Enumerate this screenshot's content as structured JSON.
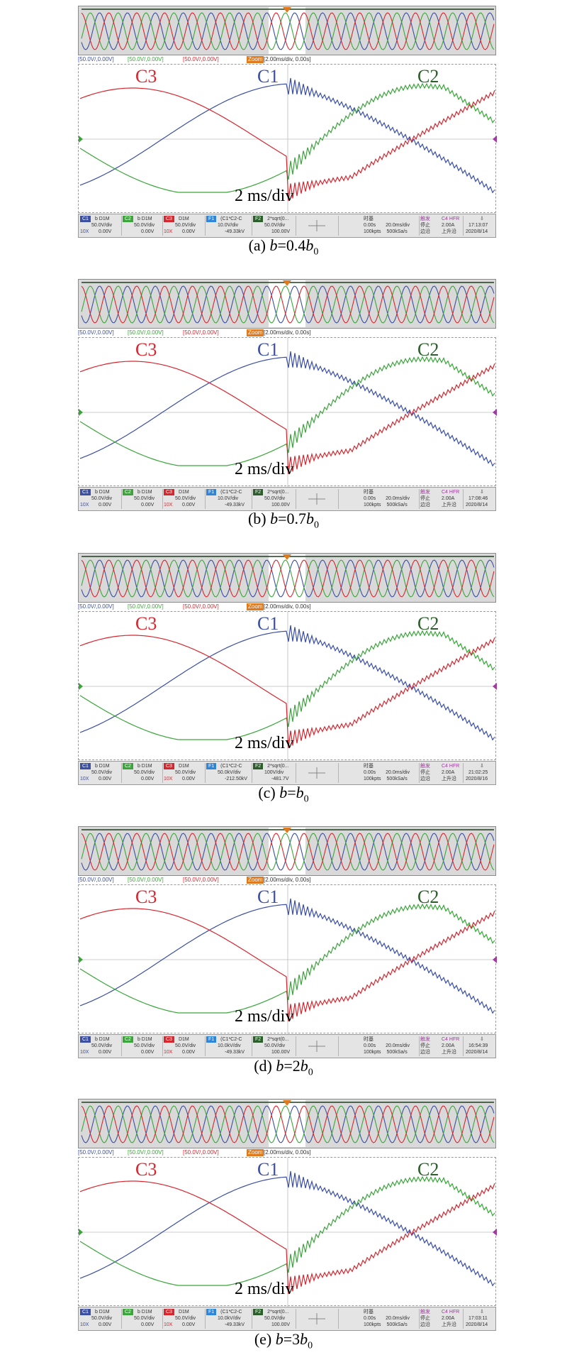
{
  "panels": [
    {
      "header": {
        "c1": "[50.0V/,0.00V]",
        "c2": "[50.0V/,0.00V]",
        "c3": "[50.0V/,0.00V]",
        "zoom": "Zoom",
        "timebase": "[2.00ms/div, 0.00s]"
      },
      "labels": {
        "c3": "C3",
        "c1": "C1",
        "c2": "C2"
      },
      "div_text": "2 ms/div",
      "status": {
        "c1": [
          "C1",
          "b D1M",
          "50.0V/div",
          "0.00V",
          "10X"
        ],
        "c2": [
          "C2",
          "b D1M",
          "50.0V/div",
          "0.00V"
        ],
        "c3": [
          "C3",
          "D1M",
          "50.0V/div",
          "0.00V",
          "10X"
        ],
        "f1": [
          "F1",
          "(C1*C2-C",
          "10.0V/div",
          "-49.33kV"
        ],
        "f2": [
          "F2",
          "2*sqrt(0...",
          "50.0V/div",
          "100.00V"
        ],
        "time": [
          "时基",
          "0.00s",
          "20.0ms/div",
          "100kpts",
          "500kSa/s"
        ],
        "trigger": [
          "触发",
          "停止",
          "边沿",
          "C4 HFR",
          "2.00A",
          "上升沿"
        ],
        "clock": [
          "17:13:07",
          "2020/8/14"
        ]
      },
      "caption": {
        "prefix": "(a) ",
        "var": "b",
        "mid": "=0.4",
        "var2": "b",
        "sub": "0"
      }
    },
    {
      "header": {
        "c1": "[50.0V/,0.00V]",
        "c2": "[50.0V/,0.00V]",
        "c3": "[50.0V/,0.00V]",
        "zoom": "Zoom",
        "timebase": "[2.00ms/div, 0.00s]"
      },
      "labels": {
        "c3": "C3",
        "c1": "C1",
        "c2": "C2"
      },
      "div_text": "2 ms/div",
      "status": {
        "c1": [
          "C1",
          "b D1M",
          "50.0V/div",
          "0.00V",
          "10X"
        ],
        "c2": [
          "C2",
          "b D1M",
          "50.0V/div",
          "0.00V"
        ],
        "c3": [
          "C3",
          "D1M",
          "50.0V/div",
          "0.00V",
          "10X"
        ],
        "f1": [
          "F1",
          "(C1*C2-C",
          "10.0V/div",
          "-49.33kV"
        ],
        "f2": [
          "F2",
          "2*sqrt(0...",
          "50.0V/div",
          "100.00V"
        ],
        "time": [
          "时基",
          "0.00s",
          "20.0ms/div",
          "100kpts",
          "500kSa/s"
        ],
        "trigger": [
          "触发",
          "停止",
          "边沿",
          "C4 HFR",
          "2.00A",
          "上升沿"
        ],
        "clock": [
          "17:08:46",
          "2020/8/14"
        ]
      },
      "caption": {
        "prefix": "(b) ",
        "var": "b",
        "mid": "=0.7",
        "var2": "b",
        "sub": "0"
      }
    },
    {
      "header": {
        "c1": "[50.0V/,0.00V]",
        "c2": "[50.0V/,0.00V]",
        "c3": "[50.0V/,0.00V]",
        "zoom": "Zoom",
        "timebase": "[2.00ms/div, 0.00s]"
      },
      "labels": {
        "c3": "C3",
        "c1": "C1",
        "c2": "C2"
      },
      "div_text": "2 ms/div",
      "status": {
        "c1": [
          "C1",
          "b D1M",
          "50.0V/div",
          "0.00V",
          "10X"
        ],
        "c2": [
          "C2",
          "b D1M",
          "50.0V/div",
          "0.00V"
        ],
        "c3": [
          "C3",
          "D1M",
          "50.0V/div",
          "0.00V",
          "10X"
        ],
        "f1": [
          "F1",
          "(C1*C2-C",
          "50.0kV/div",
          "-212.50kV"
        ],
        "f2": [
          "F2",
          "2*sqrt(0...",
          "100V/div",
          "-481.7V"
        ],
        "time": [
          "时基",
          "0.00s",
          "20.0ms/div",
          "100kpts",
          "500kSa/s"
        ],
        "trigger": [
          "触发",
          "停止",
          "边沿",
          "C4 HFR",
          "2.00A",
          "上升沿"
        ],
        "clock": [
          "21:02:25",
          "2020/8/16"
        ]
      },
      "caption": {
        "prefix": "(c) ",
        "var": "b",
        "mid": "=",
        "var2": "b",
        "sub": "0"
      }
    },
    {
      "header": {
        "c1": "[50.0V/,0.00V]",
        "c2": "[50.0V/,0.00V]",
        "c3": "[50.0V/,0.00V]",
        "zoom": "Zoom",
        "timebase": "[2.00ms/div, 0.00s]"
      },
      "labels": {
        "c3": "C3",
        "c1": "C1",
        "c2": "C2"
      },
      "div_text": "2 ms/div",
      "status": {
        "c1": [
          "C1",
          "b D1M",
          "50.0V/div",
          "0.00V",
          "10X"
        ],
        "c2": [
          "C2",
          "b D1M",
          "50.0V/div",
          "0.00V"
        ],
        "c3": [
          "C3",
          "D1M",
          "50.0V/div",
          "0.00V",
          "10X"
        ],
        "f1": [
          "F1",
          "(C1*C2-C",
          "10.0kV/div",
          "-49.33kV"
        ],
        "f2": [
          "F2",
          "2*sqrt(0...",
          "50.0V/div",
          "100.00V"
        ],
        "time": [
          "时基",
          "0.00s",
          "20.0ms/div",
          "100kpts",
          "500kSa/s"
        ],
        "trigger": [
          "触发",
          "停止",
          "边沿",
          "C4 HFR",
          "2.00A",
          "上升沿"
        ],
        "clock": [
          "16:54:39",
          "2020/8/14"
        ]
      },
      "caption": {
        "prefix": "(d) ",
        "var": "b",
        "mid": "=2",
        "var2": "b",
        "sub": "0"
      }
    },
    {
      "header": {
        "c1": "[50.0V/,0.00V]",
        "c2": "[50.0V/,0.00V]",
        "c3": "[50.0V/,0.00V]",
        "zoom": "Zoom",
        "timebase": "[2.00ms/div, 0.00s]"
      },
      "labels": {
        "c3": "C3",
        "c1": "C1",
        "c2": "C2"
      },
      "div_text": "2 ms/div",
      "status": {
        "c1": [
          "C1",
          "b D1M",
          "50.0V/div",
          "0.00V",
          "10X"
        ],
        "c2": [
          "C2",
          "b D1M",
          "50.0V/div",
          "0.00V"
        ],
        "c3": [
          "C3",
          "D1M",
          "50.0V/div",
          "0.00V",
          "10X"
        ],
        "f1": [
          "F1",
          "(C1*C2-C",
          "10.0kV/div",
          "-49.33kV"
        ],
        "f2": [
          "F2",
          "2*sqrt(0...",
          "50.0V/div",
          "100.00V"
        ],
        "time": [
          "时基",
          "0.00s",
          "20.0ms/div",
          "100kpts",
          "500kSa/s"
        ],
        "trigger": [
          "触发",
          "停止",
          "边沿",
          "C4 HFR",
          "2.00A",
          "上升沿"
        ],
        "clock": [
          "17:03:11",
          "2020/8/14"
        ]
      },
      "caption": {
        "prefix": "(e) ",
        "var": "b",
        "mid": "=3",
        "var2": "b",
        "sub": "0"
      }
    }
  ],
  "colors": {
    "c1": "#3b4fa3",
    "c2": "#3aa63a",
    "c3": "#d8262e",
    "f1": "#2f86d8",
    "f2": "#2b5e2b",
    "zoom": "#e07a1e"
  }
}
